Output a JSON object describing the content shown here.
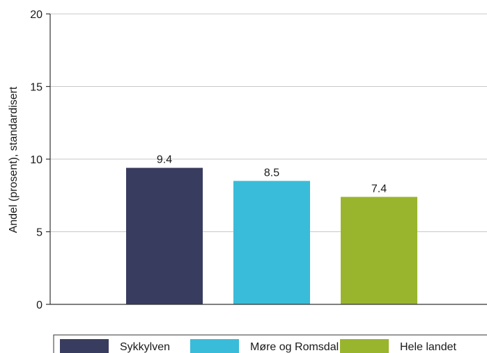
{
  "chart_data": {
    "type": "bar",
    "title": "",
    "xlabel": "",
    "ylabel": "Andel (prosent), standardisert",
    "ylim": [
      0,
      20
    ],
    "yticks": [
      0,
      5,
      10,
      15,
      20
    ],
    "grid": true,
    "legend_position": "bottom",
    "categories": [
      "Sykkylven",
      "Møre og Romsdal",
      "Hele landet"
    ],
    "values": [
      9.4,
      8.5,
      7.4
    ],
    "value_labels": [
      "9.4",
      "8.5",
      "7.4"
    ],
    "colors": [
      "#383c5f",
      "#39bcd9",
      "#99b52d"
    ]
  }
}
